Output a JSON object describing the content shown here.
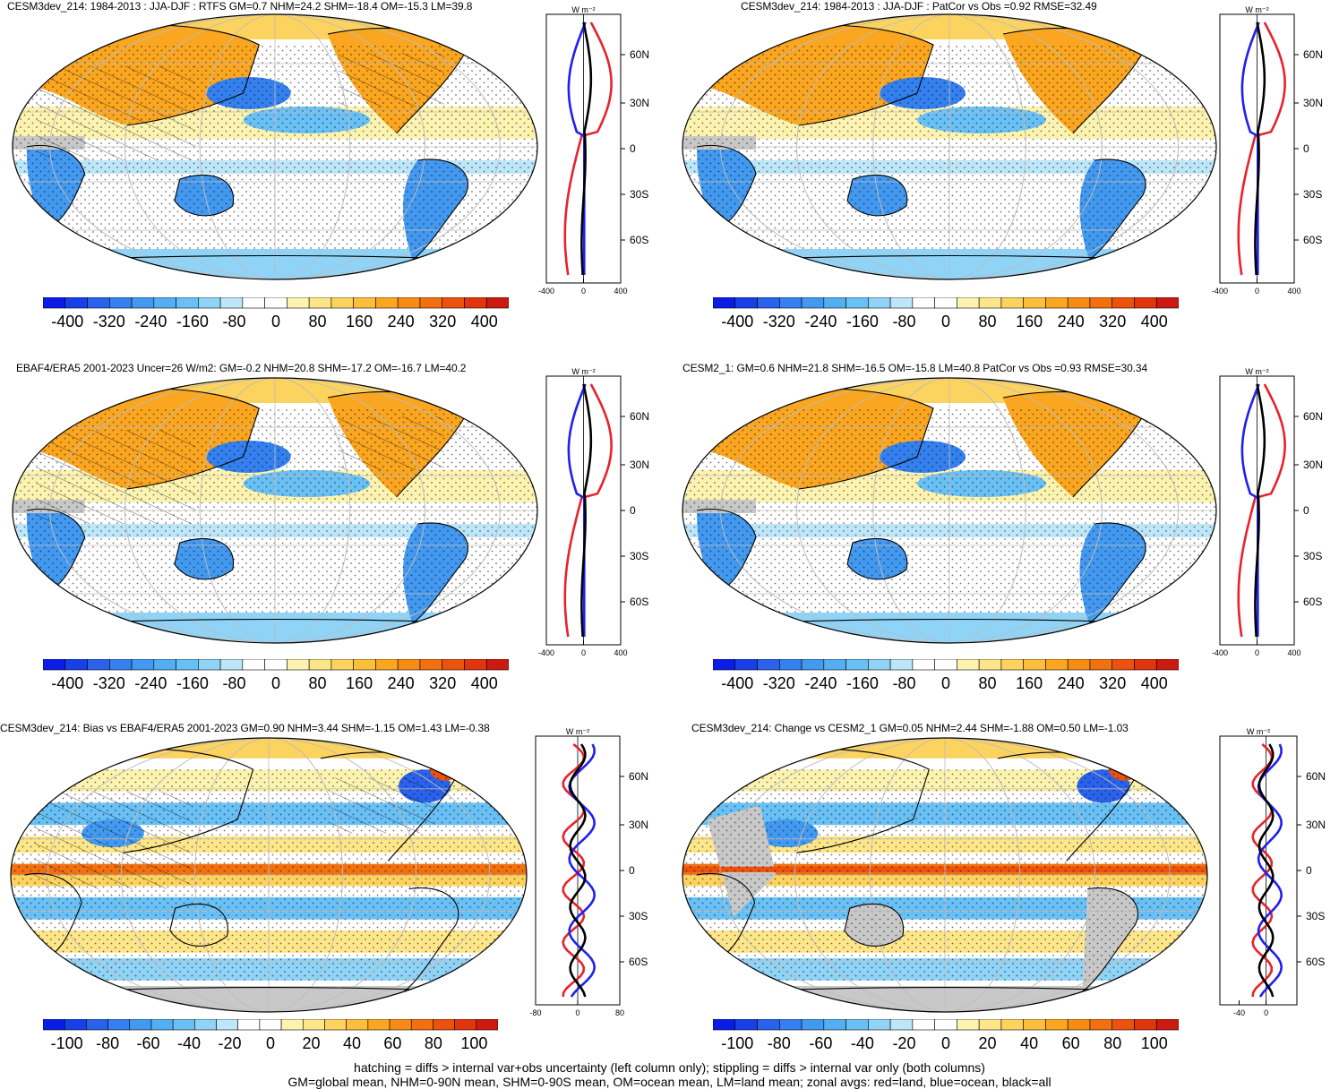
{
  "panels": [
    {
      "title": "CESM3dev_214: 1984-2013 : JJA-DJF : RTFS GM=0.7 NHM=24.2 SHM=-18.4 OM=-15.3 LM=39.8",
      "zonal": {
        "unit": "W m⁻²",
        "xticks": [
          "-400",
          "0",
          "400"
        ],
        "lat_labels": [
          "60N",
          "30N",
          "0",
          "30S",
          "60S"
        ]
      },
      "colorbar": {
        "labels": [
          "-400",
          "-320",
          "-240",
          "-160",
          "-80",
          "0",
          "80",
          "160",
          "240",
          "320",
          "400"
        ]
      },
      "hatching": true
    },
    {
      "title": "CESM3dev_214: 1984-2013 : JJA-DJF : PatCor vs Obs =0.92 RMSE=32.49",
      "zonal": {
        "unit": "W m⁻²",
        "xticks": [
          "-400",
          "0",
          "400"
        ],
        "lat_labels": [
          "60N",
          "30N",
          "0",
          "30S",
          "60S"
        ]
      },
      "colorbar": {
        "labels": [
          "-400",
          "-320",
          "-240",
          "-160",
          "-80",
          "0",
          "80",
          "160",
          "240",
          "320",
          "400"
        ]
      },
      "hatching": false
    },
    {
      "title": "EBAF4/ERA5 2001-2023 Uncer=26 W/m2: GM=-0.2 NHM=20.8 SHM=-17.2 OM=-16.7 LM=40.2",
      "zonal": {
        "unit": "W m⁻²",
        "xticks": [
          "-400",
          "0",
          "400"
        ],
        "lat_labels": [
          "60N",
          "30N",
          "0",
          "30S",
          "60S"
        ]
      },
      "colorbar": {
        "labels": [
          "-400",
          "-320",
          "-240",
          "-160",
          "-80",
          "0",
          "80",
          "160",
          "240",
          "320",
          "400"
        ]
      },
      "hatching": true
    },
    {
      "title": "CESM2_1: GM=0.6 NHM=21.8 SHM=-16.5 OM=-15.8 LM=40.8 PatCor vs Obs =0.93 RMSE=30.34",
      "zonal": {
        "unit": "W m⁻²",
        "xticks": [
          "-400",
          "0",
          "400"
        ],
        "lat_labels": [
          "60N",
          "30N",
          "0",
          "30S",
          "60S"
        ]
      },
      "colorbar": {
        "labels": [
          "-400",
          "-320",
          "-240",
          "-160",
          "-80",
          "0",
          "80",
          "160",
          "240",
          "320",
          "400"
        ]
      },
      "hatching": false
    },
    {
      "title": "CESM3dev_214: Bias vs EBAF4/ERA5 2001-2023 GM=0.90 NHM=3.44 SHM=-1.15 OM=1.43 LM=-0.38",
      "zonal": {
        "unit": "W m⁻²",
        "xticks": [
          "-80",
          "0",
          "80"
        ],
        "lat_labels": [
          "60N",
          "30N",
          "0",
          "30S",
          "60S"
        ]
      },
      "colorbar": {
        "labels": [
          "-100",
          "-80",
          "-60",
          "-40",
          "-20",
          "0",
          "20",
          "40",
          "60",
          "80",
          "100"
        ]
      },
      "hatching": true
    },
    {
      "title": "CESM3dev_214: Change vs CESM2_1 GM=0.05 NHM=2.44 SHM=-1.88 OM=0.50 LM=-1.03",
      "zonal": {
        "unit": "W m⁻²",
        "xticks": [
          "-40",
          "0"
        ],
        "lat_labels": [
          "60N",
          "30N",
          "0",
          "30S",
          "60S"
        ]
      },
      "colorbar": {
        "labels": [
          "-100",
          "-80",
          "-60",
          "-40",
          "-20",
          "0",
          "20",
          "40",
          "60",
          "80",
          "100"
        ]
      },
      "hatching": false
    }
  ],
  "colors": {
    "land": "#e8222a",
    "ocean": "#1f1ff0",
    "all": "#000000",
    "palette": [
      "#0a1de6",
      "#1840e8",
      "#2a62eb",
      "#3480ee",
      "#4399f0",
      "#53aff2",
      "#69c0f4",
      "#8fd3f6",
      "#bde6f8",
      "#ffffff",
      "#ffffff",
      "#fdf3b0",
      "#fde68a",
      "#fcd35e",
      "#fcbf3b",
      "#faa620",
      "#f78c14",
      "#f2700f",
      "#eb520e",
      "#e1350e",
      "#cc1a10"
    ]
  },
  "footnote": [
    "hatching = diffs > internal var+obs uncertainty (left column only); stippling = diffs > internal var only (both columns)",
    "GM=global mean, NHM=0-90N mean, SHM=0-90S mean, OM=ocean mean, LM=land mean; zonal avgs: red=land, blue=ocean, black=all"
  ]
}
